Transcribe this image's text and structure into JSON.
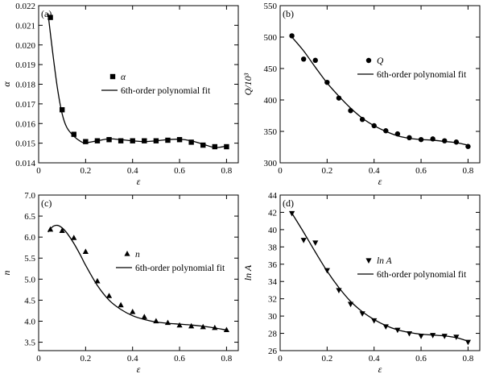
{
  "chart_data": [
    {
      "type": "scatter",
      "panel_label": "(a)",
      "xlabel": "ε",
      "ylabel": "α",
      "xlim": [
        0,
        0.85
      ],
      "ylim": [
        0.014,
        0.022
      ],
      "xticks": [
        0,
        0.2,
        0.4,
        0.6,
        0.8
      ],
      "xtick_labels": [
        "0",
        "0.2",
        "0.4",
        "0.6",
        "0.8"
      ],
      "yticks": [
        0.014,
        0.015,
        0.016,
        0.017,
        0.018,
        0.019,
        0.02,
        0.021,
        0.022
      ],
      "ytick_labels": [
        "0.014",
        "0.015",
        "0.016",
        "0.017",
        "0.018",
        "0.019",
        "0.020",
        "0.021",
        "0.022"
      ],
      "marker": "square",
      "legend": {
        "marker_label": "α",
        "fit_label": "6th-order polynomial fit",
        "placement": "center-right"
      },
      "points": {
        "x": [
          0.05,
          0.1,
          0.15,
          0.2,
          0.25,
          0.3,
          0.35,
          0.4,
          0.45,
          0.5,
          0.55,
          0.6,
          0.65,
          0.7,
          0.75,
          0.8
        ],
        "y": [
          0.0214,
          0.0167,
          0.01545,
          0.01508,
          0.01512,
          0.01518,
          0.01512,
          0.01512,
          0.01512,
          0.01512,
          0.01515,
          0.01518,
          0.01505,
          0.0149,
          0.01482,
          0.01482
        ]
      },
      "fit": {
        "x": [
          0.04,
          0.06,
          0.08,
          0.1,
          0.12,
          0.15,
          0.18,
          0.2,
          0.25,
          0.3,
          0.35,
          0.4,
          0.45,
          0.5,
          0.55,
          0.6,
          0.65,
          0.7,
          0.75,
          0.8
        ],
        "y": [
          0.0216,
          0.0196,
          0.0178,
          0.0165,
          0.0158,
          0.01535,
          0.01508,
          0.01502,
          0.01512,
          0.01522,
          0.01518,
          0.01512,
          0.01508,
          0.01512,
          0.01518,
          0.0152,
          0.01512,
          0.01495,
          0.01478,
          0.01485
        ]
      }
    },
    {
      "type": "scatter",
      "panel_label": "(b)",
      "xlabel": "ε",
      "ylabel": "Q/10³",
      "xlim": [
        0,
        0.85
      ],
      "ylim": [
        300,
        550
      ],
      "xticks": [
        0,
        0.2,
        0.4,
        0.6,
        0.8
      ],
      "xtick_labels": [
        "0",
        "0.2",
        "0.4",
        "0.6",
        "0.8"
      ],
      "yticks": [
        300,
        350,
        400,
        450,
        500,
        550
      ],
      "ytick_labels": [
        "300",
        "350",
        "400",
        "450",
        "500",
        "550"
      ],
      "marker": "circle",
      "legend": {
        "marker_label": "Q",
        "fit_label": "6th-order polynomial fit",
        "placement": "center-right"
      },
      "points": {
        "x": [
          0.05,
          0.1,
          0.15,
          0.2,
          0.25,
          0.3,
          0.35,
          0.4,
          0.45,
          0.5,
          0.55,
          0.6,
          0.65,
          0.7,
          0.75,
          0.8
        ],
        "y": [
          502,
          465,
          463,
          428,
          403,
          383,
          369,
          359,
          351,
          346,
          340,
          337,
          338,
          335,
          333,
          326
        ]
      },
      "fit": {
        "x": [
          0.05,
          0.1,
          0.15,
          0.2,
          0.25,
          0.3,
          0.35,
          0.4,
          0.45,
          0.5,
          0.55,
          0.6,
          0.65,
          0.7,
          0.75,
          0.8
        ],
        "y": [
          500,
          478,
          452,
          427,
          406,
          387,
          371,
          359,
          350,
          343,
          339,
          337,
          336,
          334,
          332,
          328
        ]
      }
    },
    {
      "type": "scatter",
      "panel_label": "(c)",
      "xlabel": "ε",
      "ylabel": "n",
      "xlim": [
        0,
        0.85
      ],
      "ylim": [
        3.3,
        7.0
      ],
      "xticks": [
        0,
        0.2,
        0.4,
        0.6,
        0.8
      ],
      "xtick_labels": [
        "0",
        "0.2",
        "0.4",
        "0.6",
        "0.8"
      ],
      "yticks": [
        3.5,
        4.0,
        4.5,
        5.0,
        5.5,
        6.0,
        6.5,
        7.0
      ],
      "ytick_labels": [
        "3.5",
        "4.0",
        "4.5",
        "5.0",
        "5.5",
        "6.0",
        "6.5",
        "7.0"
      ],
      "marker": "triangle-up",
      "legend": {
        "marker_label": "n",
        "fit_label": "6th-order polynomial fit",
        "placement": "center-right"
      },
      "points": {
        "x": [
          0.05,
          0.1,
          0.15,
          0.2,
          0.25,
          0.3,
          0.35,
          0.4,
          0.45,
          0.5,
          0.55,
          0.6,
          0.65,
          0.7,
          0.75,
          0.8
        ],
        "y": [
          6.18,
          6.15,
          5.98,
          5.65,
          4.95,
          4.6,
          4.38,
          4.22,
          4.1,
          4.0,
          3.96,
          3.9,
          3.88,
          3.86,
          3.84,
          3.79
        ]
      },
      "fit": {
        "x": [
          0.04,
          0.06,
          0.08,
          0.1,
          0.12,
          0.15,
          0.18,
          0.2,
          0.25,
          0.3,
          0.35,
          0.4,
          0.45,
          0.5,
          0.55,
          0.6,
          0.65,
          0.7,
          0.75,
          0.8
        ],
        "y": [
          6.12,
          6.25,
          6.28,
          6.22,
          6.1,
          5.85,
          5.55,
          5.33,
          4.85,
          4.5,
          4.28,
          4.13,
          4.04,
          3.98,
          3.95,
          3.93,
          3.91,
          3.88,
          3.84,
          3.79
        ]
      }
    },
    {
      "type": "scatter",
      "panel_label": "(d)",
      "xlabel": "ε",
      "ylabel": "ln A",
      "xlim": [
        0,
        0.85
      ],
      "ylim": [
        26,
        44
      ],
      "xticks": [
        0,
        0.2,
        0.4,
        0.6,
        0.8
      ],
      "xtick_labels": [
        "0",
        "0.2",
        "0.4",
        "0.6",
        "0.8"
      ],
      "yticks": [
        26,
        28,
        30,
        32,
        34,
        36,
        38,
        40,
        42,
        44
      ],
      "ytick_labels": [
        "26",
        "28",
        "30",
        "32",
        "34",
        "36",
        "38",
        "40",
        "42",
        "44"
      ],
      "marker": "triangle-down",
      "legend": {
        "marker_label": "ln A",
        "fit_label": "6th-order polynomial fit",
        "placement": "center-right"
      },
      "points": {
        "x": [
          0.05,
          0.1,
          0.15,
          0.2,
          0.25,
          0.3,
          0.35,
          0.4,
          0.45,
          0.5,
          0.55,
          0.6,
          0.65,
          0.7,
          0.75,
          0.8
        ],
        "y": [
          41.9,
          38.8,
          38.5,
          35.3,
          33.0,
          31.4,
          30.3,
          29.5,
          28.8,
          28.4,
          28.0,
          27.7,
          27.8,
          27.7,
          27.6,
          27.0
        ]
      },
      "fit": {
        "x": [
          0.05,
          0.1,
          0.15,
          0.2,
          0.25,
          0.3,
          0.35,
          0.4,
          0.45,
          0.5,
          0.55,
          0.6,
          0.65,
          0.7,
          0.75,
          0.8
        ],
        "y": [
          41.9,
          39.7,
          37.4,
          35.2,
          33.3,
          31.7,
          30.5,
          29.6,
          28.9,
          28.4,
          28.1,
          27.9,
          27.8,
          27.7,
          27.5,
          27.1
        ]
      }
    }
  ]
}
